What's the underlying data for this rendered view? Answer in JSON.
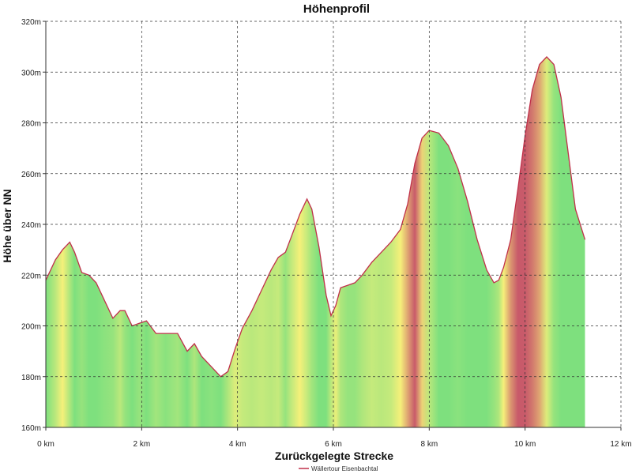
{
  "chart_data": {
    "type": "area",
    "title": "Höhenprofil",
    "xlabel": "Zurückgelegte Strecke",
    "ylabel": "Höhe über NN",
    "xlim": [
      0,
      12
    ],
    "ylim": [
      160,
      320
    ],
    "x_ticks": [
      0,
      2,
      4,
      6,
      8,
      10,
      12
    ],
    "x_tick_labels": [
      "0 km",
      "2 km",
      "4 km",
      "6 km",
      "8 km",
      "10 km",
      "12 km"
    ],
    "y_ticks": [
      160,
      180,
      200,
      220,
      240,
      260,
      280,
      300,
      320
    ],
    "y_tick_labels": [
      "160m",
      "180m",
      "200m",
      "220m",
      "240m",
      "260m",
      "280m",
      "300m",
      "320m"
    ],
    "grid": true,
    "legend_position": "bottom-center",
    "colors": {
      "line": "#c0304a",
      "flat": "#7ee07e",
      "moderate": "#f5f07a",
      "steep": "#c85a6a"
    },
    "series": [
      {
        "name": "Wällertour Eisenbachtal",
        "x": [
          0,
          0.2,
          0.35,
          0.5,
          0.6,
          0.75,
          0.9,
          1.05,
          1.2,
          1.4,
          1.55,
          1.65,
          1.8,
          1.95,
          2.1,
          2.3,
          2.5,
          2.75,
          2.95,
          3.1,
          3.25,
          3.45,
          3.65,
          3.8,
          3.95,
          4.1,
          4.3,
          4.5,
          4.7,
          4.85,
          5.0,
          5.1,
          5.3,
          5.45,
          5.55,
          5.7,
          5.85,
          5.95,
          6.05,
          6.15,
          6.3,
          6.45,
          6.6,
          6.8,
          7.0,
          7.2,
          7.4,
          7.55,
          7.7,
          7.85,
          8.0,
          8.2,
          8.4,
          8.6,
          8.8,
          9.0,
          9.2,
          9.35,
          9.45,
          9.55,
          9.7,
          9.85,
          10.0,
          10.15,
          10.3,
          10.45,
          10.6,
          10.75,
          10.9,
          11.05,
          11.25
        ],
        "y": [
          218,
          226,
          230,
          233,
          229,
          221,
          220,
          217,
          211,
          203,
          206,
          206,
          200,
          201,
          202,
          197,
          197,
          197,
          190,
          193,
          188,
          184,
          180,
          182,
          191,
          199,
          206,
          214,
          222,
          227,
          229,
          234,
          244,
          250,
          246,
          231,
          212,
          204,
          208,
          215,
          216,
          217,
          220,
          225,
          229,
          233,
          238,
          248,
          264,
          274,
          277,
          276,
          271,
          262,
          249,
          234,
          222,
          217,
          218,
          223,
          234,
          254,
          275,
          293,
          303,
          306,
          303,
          290,
          268,
          246,
          234
        ],
        "gradient_levels": [
          0.0,
          0.5,
          1.0,
          0.4,
          0.0,
          0.2,
          0.0,
          0.0,
          0.1,
          0.2,
          0.5,
          0.2,
          0.0,
          0.2,
          0.0,
          0.3,
          0.1,
          0.3,
          0.0,
          0.4,
          0.0,
          0.1,
          0.0,
          0.4,
          0.8,
          0.6,
          0.5,
          0.6,
          0.5,
          0.6,
          0.2,
          0.5,
          1.0,
          0.6,
          0.3,
          0.0,
          0.0,
          0.5,
          0.9,
          0.4,
          0.2,
          0.2,
          0.4,
          0.6,
          0.5,
          0.6,
          1.0,
          1.5,
          2.0,
          1.2,
          0.5,
          0.0,
          0.0,
          0.1,
          0.0,
          0.0,
          0.0,
          0.2,
          0.4,
          1.0,
          1.6,
          2.0,
          2.0,
          1.8,
          1.5,
          0.8,
          0.2,
          0.0,
          0.0,
          0.0,
          0.0
        ]
      }
    ]
  }
}
